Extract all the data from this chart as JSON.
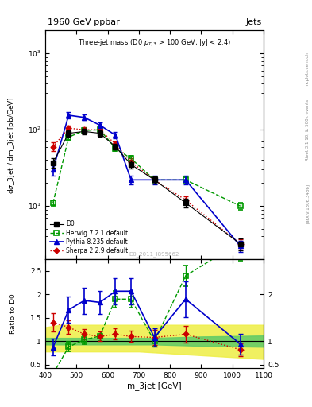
{
  "title_top": "1960 GeV ppbar",
  "title_right": "Jets",
  "subtitle": "Three-jet mass (D0 p_{T,3} > 100 GeV, |y| < 2.4)",
  "watermark": "D0_2011_I895662",
  "rivet_label": "Rivet 3.1.10, ≥ 500k events",
  "arxiv_label": "[arXiv:1306.3436]",
  "xlabel": "m_3jet [GeV]",
  "ylabel": "dσ_3jet / dm_3jet [pb/GeV]",
  "ratio_ylabel": "Ratio to D0",
  "x": [
    425,
    475,
    525,
    575,
    625,
    675,
    750,
    850,
    1025
  ],
  "d0_y": [
    37,
    90,
    95,
    90,
    60,
    35,
    22,
    11,
    3.2
  ],
  "d0_yerr": [
    5,
    8,
    8,
    8,
    5,
    4,
    2.5,
    1.5,
    0.6
  ],
  "herwig_y": [
    11,
    80,
    98,
    100,
    57,
    42,
    22,
    22,
    10
  ],
  "herwig_yerr": [
    1,
    6,
    7,
    8,
    5,
    4,
    2,
    2,
    1
  ],
  "pythia_y": [
    30,
    155,
    145,
    115,
    85,
    22,
    22,
    22,
    3.0
  ],
  "pythia_yerr": [
    5,
    15,
    12,
    10,
    8,
    3,
    3,
    3,
    0.5
  ],
  "sherpa_y": [
    60,
    105,
    100,
    100,
    65,
    38,
    22,
    12,
    3.2
  ],
  "sherpa_yerr": [
    8,
    9,
    8,
    8,
    6,
    4,
    2.5,
    1.5,
    0.5
  ],
  "ratio_herwig": [
    0.3,
    0.88,
    1.03,
    1.11,
    1.9,
    1.9,
    1.0,
    2.4,
    3.12
  ],
  "ratio_herwig_err": [
    0.05,
    0.1,
    0.1,
    0.1,
    0.18,
    0.18,
    0.12,
    0.22,
    0.4
  ],
  "ratio_pythia": [
    0.87,
    1.67,
    1.87,
    1.83,
    2.07,
    2.07,
    1.08,
    1.9,
    0.94
  ],
  "ratio_pythia_err": [
    0.18,
    0.28,
    0.28,
    0.24,
    0.28,
    0.28,
    0.2,
    0.38,
    0.22
  ],
  "ratio_sherpa": [
    1.4,
    1.3,
    1.15,
    1.1,
    1.15,
    1.1,
    1.08,
    1.15,
    0.82
  ],
  "ratio_sherpa_err": [
    0.2,
    0.14,
    0.11,
    0.1,
    0.12,
    0.12,
    0.16,
    0.18,
    0.14
  ],
  "band_x": [
    400,
    450,
    500,
    550,
    600,
    650,
    700,
    750,
    800,
    900,
    1100
  ],
  "band_inner_lo": [
    0.93,
    0.93,
    0.93,
    0.93,
    0.93,
    0.93,
    0.93,
    0.93,
    0.92,
    0.9,
    0.88
  ],
  "band_inner_hi": [
    1.07,
    1.07,
    1.07,
    1.07,
    1.07,
    1.07,
    1.07,
    1.07,
    1.08,
    1.1,
    1.12
  ],
  "band_outer_lo": [
    0.78,
    0.78,
    0.78,
    0.78,
    0.78,
    0.78,
    0.78,
    0.76,
    0.74,
    0.7,
    0.62
  ],
  "band_outer_hi": [
    1.3,
    1.35,
    1.35,
    1.35,
    1.35,
    1.35,
    1.35,
    1.35,
    1.35,
    1.35,
    1.35
  ],
  "colors": {
    "d0": "#000000",
    "herwig": "#009900",
    "pythia": "#0000cc",
    "sherpa": "#cc0000",
    "band_inner": "#66cc66",
    "band_outer": "#eeee44",
    "bg": "#ffffff",
    "panel_bg": "#ffffff"
  },
  "ylim_main": [
    2.0,
    2000.0
  ],
  "ylim_ratio": [
    0.42,
    2.75
  ],
  "xlim": [
    400,
    1100
  ]
}
